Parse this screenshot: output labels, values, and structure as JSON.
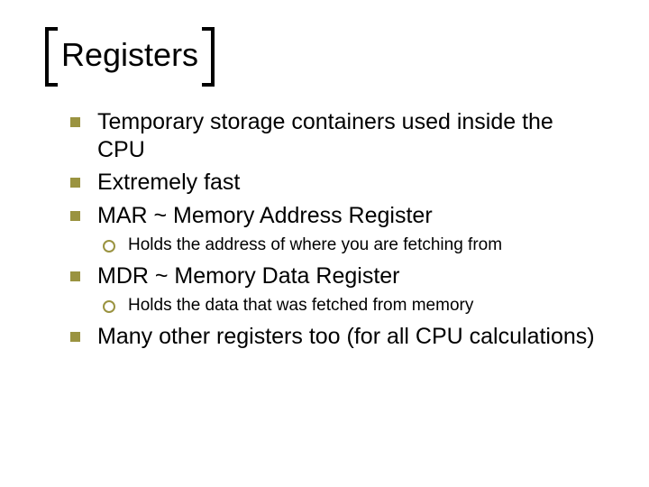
{
  "colors": {
    "bullet_square": "#9a9340",
    "bullet_circle_border": "#9a9340",
    "text": "#000000",
    "background": "#ffffff",
    "bracket": "#000000"
  },
  "typography": {
    "title_fontsize": 36,
    "level1_fontsize": 25,
    "level2_fontsize": 19,
    "font_family": "Arial"
  },
  "layout": {
    "slide_width": 720,
    "slide_height": 540,
    "bracket_thickness": 4,
    "bracket_tab_width": 14,
    "bullet_square_size": 11,
    "bullet_circle_size": 10
  },
  "title": "Registers",
  "bullets": {
    "b0": "Temporary storage containers used inside the CPU",
    "b1": "Extremely fast",
    "b2": "MAR ~ Memory Address Register",
    "b2_sub0": "Holds the address of where you are fetching from",
    "b3": "MDR ~ Memory Data Register",
    "b3_sub0": "Holds the data that was fetched from memory",
    "b4": "Many other registers too (for all CPU calculations)"
  }
}
